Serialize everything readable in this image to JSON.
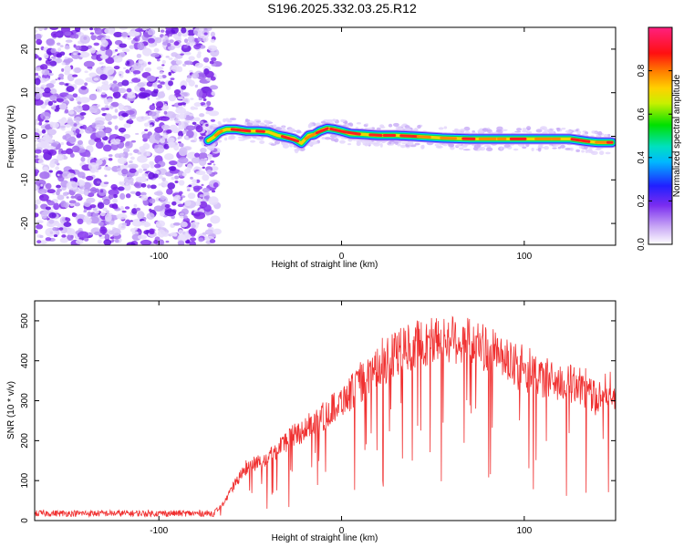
{
  "page_title": "S196.2025.332.03.25.R12",
  "chart_data": [
    {
      "type": "heatmap",
      "title": "S196.2025.332.03.25.R12",
      "xlabel": "Height of straight line (km)",
      "ylabel": "Frequency (Hz)",
      "xlim": [
        -168,
        150
      ],
      "ylim": [
        -25,
        25
      ],
      "xticks": [
        -100,
        0,
        100
      ],
      "yticks": [
        -20,
        -10,
        0,
        10,
        20
      ],
      "noise_region_x": [
        -168,
        -70
      ],
      "ridge": {
        "x": [
          -73,
          -70,
          -67,
          -63,
          -58,
          -52,
          -46,
          -40,
          -35,
          -30,
          -26,
          -22,
          -18,
          -15,
          -12,
          -8,
          -4,
          0,
          5,
          10,
          20,
          30,
          40,
          55,
          70,
          85,
          100,
          115,
          125,
          135,
          140,
          148
        ],
        "y": [
          -1.0,
          -0.2,
          1.0,
          1.6,
          1.6,
          1.2,
          1.2,
          1.0,
          0.2,
          -0.2,
          -0.6,
          -1.6,
          0.2,
          0.4,
          1.2,
          1.8,
          1.6,
          1.2,
          0.6,
          0.5,
          0.2,
          0.2,
          0.0,
          -0.4,
          -0.6,
          -0.6,
          -0.6,
          -0.6,
          -0.6,
          -1.2,
          -1.4,
          -1.4
        ]
      },
      "colorbar": {
        "label": "Normalized spectral amplitude",
        "range": [
          0,
          1
        ],
        "ticks": [
          "0.0",
          "0.2",
          "0.4",
          "0.6",
          "0.8"
        ],
        "tick_values": [
          0.0,
          0.2,
          0.4,
          0.6,
          0.8
        ]
      }
    },
    {
      "type": "line",
      "xlabel": "Height of straight line (km)",
      "ylabel": "SNR (10 * v/v)",
      "xlim": [
        -168,
        150
      ],
      "ylim": [
        0,
        550
      ],
      "xticks": [
        -100,
        0,
        100
      ],
      "yticks": [
        0,
        100,
        200,
        300,
        400,
        500
      ],
      "series": [
        {
          "name": "SNR",
          "color": "#f03030",
          "envelope_x": [
            -168,
            -70,
            -65,
            -60,
            -55,
            -50,
            -40,
            -30,
            -20,
            -10,
            0,
            10,
            20,
            30,
            40,
            50,
            60,
            70,
            80,
            90,
            100,
            110,
            120,
            130,
            135,
            140,
            145,
            150
          ],
          "envelope_y": [
            18,
            18,
            40,
            80,
            115,
            135,
            160,
            200,
            230,
            260,
            300,
            340,
            380,
            420,
            440,
            450,
            455,
            450,
            430,
            400,
            370,
            355,
            345,
            340,
            320,
            300,
            340,
            310
          ],
          "samples_count": 1300
        }
      ]
    }
  ]
}
